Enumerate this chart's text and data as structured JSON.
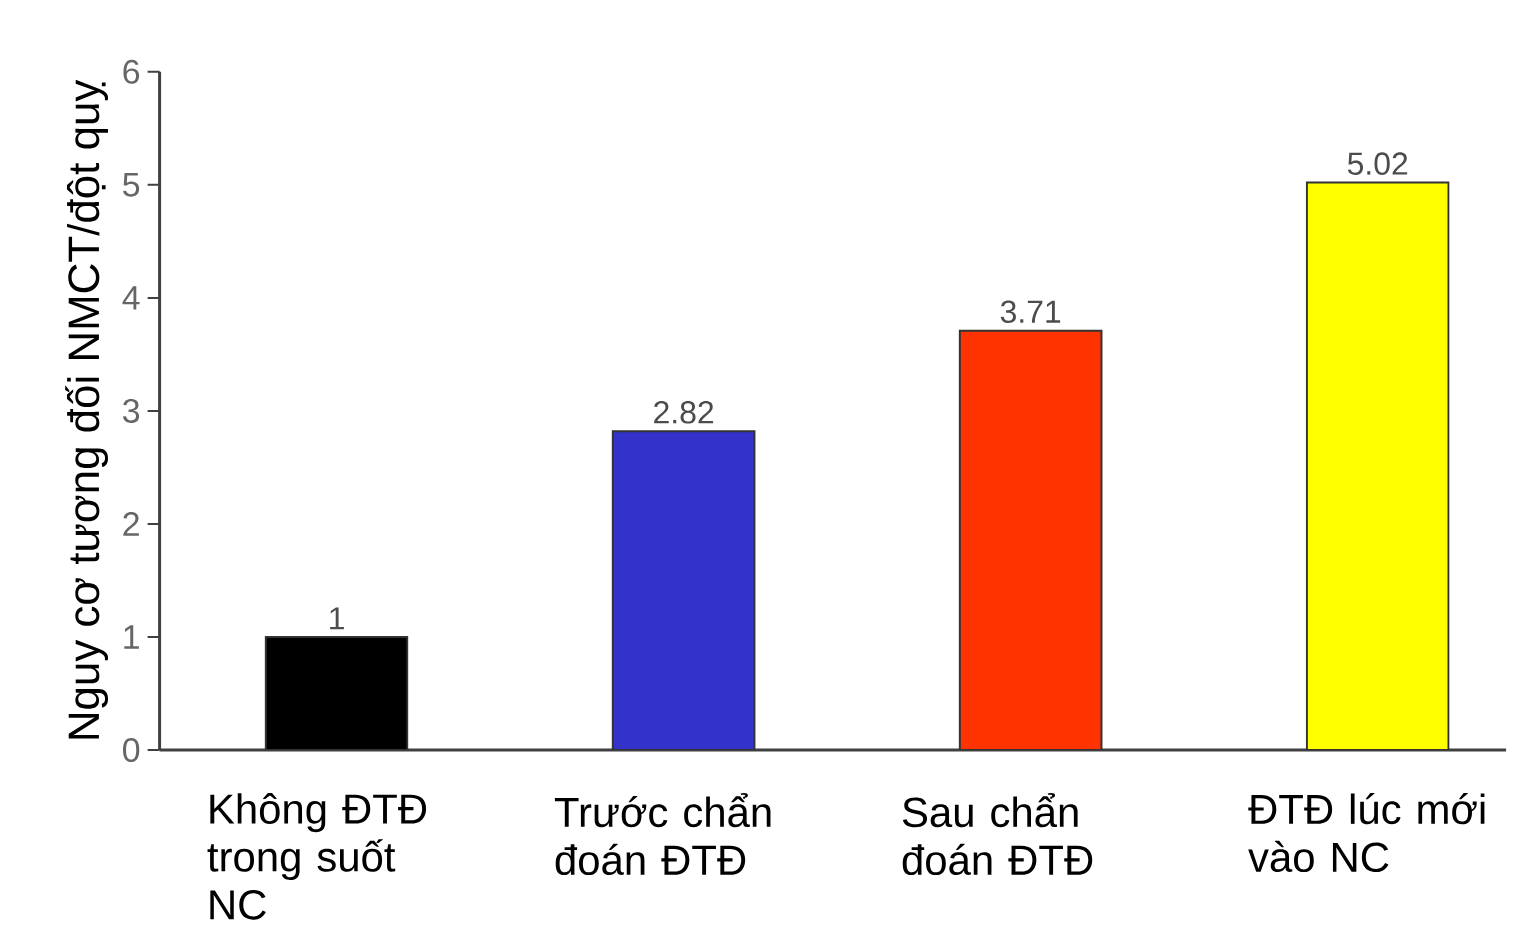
{
  "chart_data": {
    "type": "bar",
    "ylabel": "Nguy cơ tương đối NMCT/đột quỵ",
    "categories": [
      "Không ĐTĐ trong suốt NC",
      "Trước chẩn đoán ĐTĐ",
      "Sau chẩn đoán ĐTĐ",
      "ĐTĐ lúc mới vào NC"
    ],
    "values": [
      1,
      2.82,
      3.71,
      5.02
    ],
    "colors": [
      "#000000",
      "#3333cc",
      "#ff3300",
      "#ffff00"
    ],
    "ylim": [
      0,
      6
    ],
    "yticks": [
      0,
      1,
      2,
      3,
      4,
      5,
      6
    ],
    "data_labels": true
  }
}
